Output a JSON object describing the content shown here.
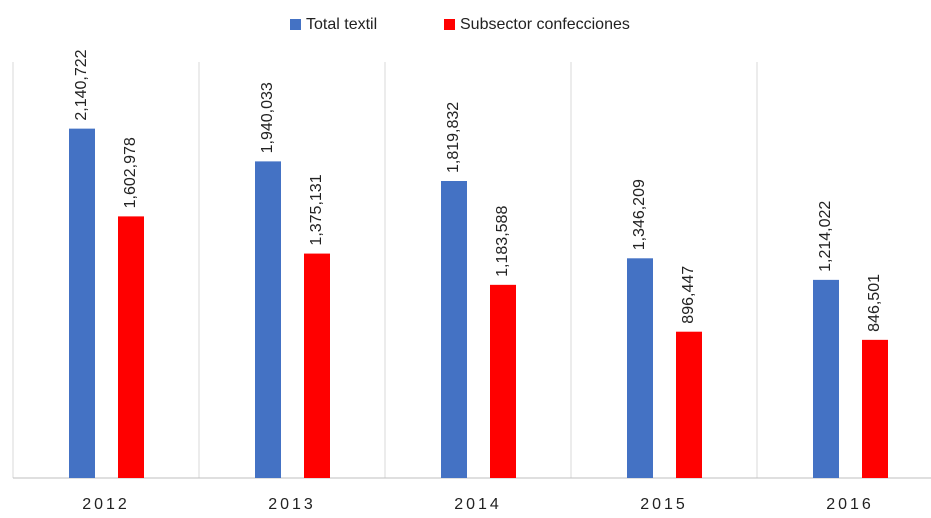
{
  "chart_data": {
    "type": "bar",
    "categories": [
      "2012",
      "2013",
      "2014",
      "2015",
      "2016"
    ],
    "series": [
      {
        "name": "Total textil",
        "color": "#4472c4",
        "values": [
          2140722,
          1940033,
          1819832,
          1346209,
          1214022
        ],
        "value_labels": [
          "2,140,722",
          "1,940,033",
          "1,819,832",
          "1,346,209",
          "1,214,022"
        ]
      },
      {
        "name": "Subsector confecciones",
        "color": "#ff0000",
        "values": [
          1602978,
          1375131,
          1183588,
          896447,
          846501
        ],
        "value_labels": [
          "1,602,978",
          "1,375,131",
          "1,183,588",
          "896,447",
          "846,501"
        ]
      }
    ],
    "ylim": [
      0,
      2500000
    ],
    "legend": "top"
  }
}
